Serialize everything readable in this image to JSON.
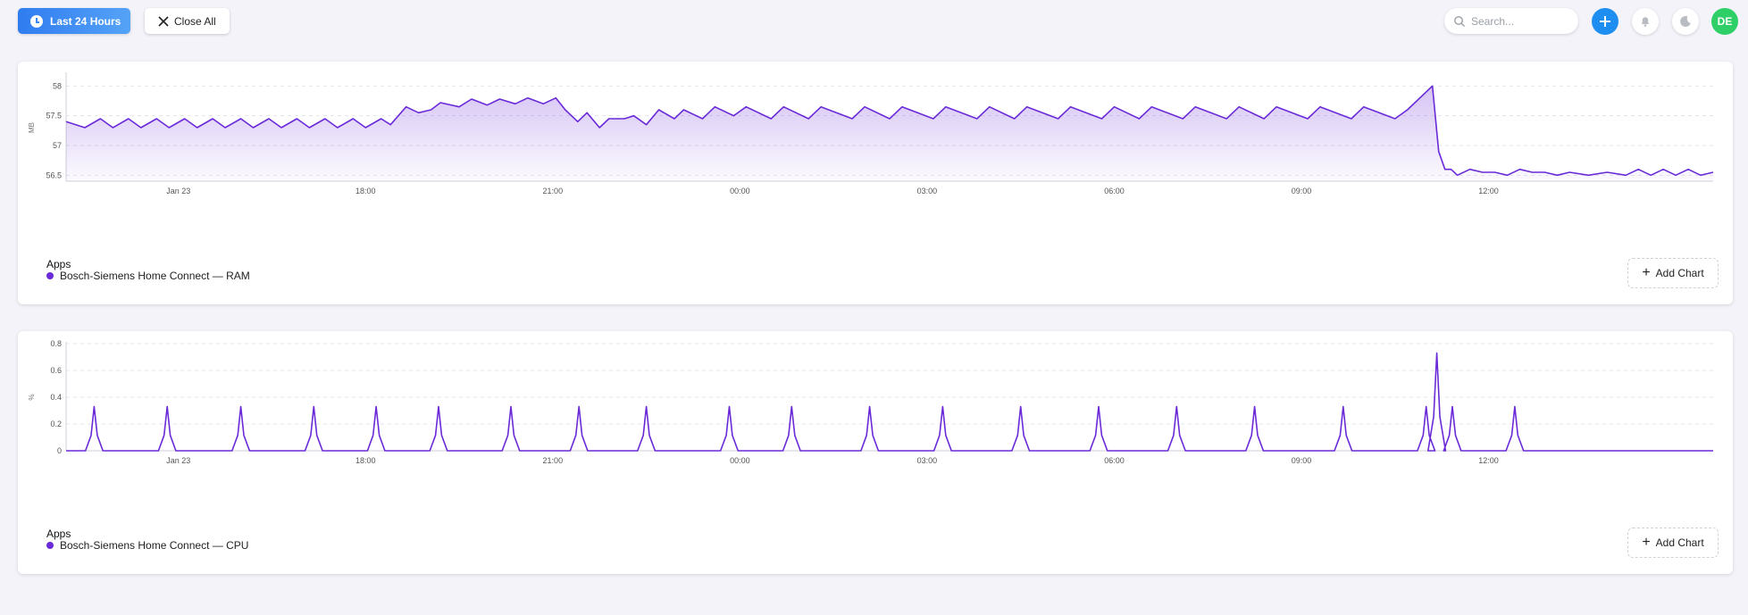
{
  "toolbar": {
    "time_range_label": "Last 24 Hours",
    "close_all_label": "Close All",
    "search_placeholder": "Search...",
    "avatar_initials": "DE"
  },
  "colors": {
    "accent": "#2f7cf0",
    "series": "#6a2ad8",
    "avatar": "#2fcf67",
    "add": "#1e8ff0"
  },
  "icons": [
    "clock-icon",
    "close-icon",
    "search-icon",
    "plus-icon",
    "bell-icon",
    "moon-icon"
  ],
  "charts": [
    {
      "legend_title": "Apps",
      "legend_item": "Bosch-Siemens Home Connect — RAM",
      "add_chart_label": "Add Chart"
    },
    {
      "legend_title": "Apps",
      "legend_item": "Bosch-Siemens Home Connect — CPU",
      "add_chart_label": "Add Chart"
    }
  ],
  "chart_data": [
    {
      "type": "area",
      "ylabel": "MB",
      "yticks": [
        56.5,
        57,
        57.5,
        58
      ],
      "ylim": [
        56.4,
        58.2
      ],
      "x_range_hours": [
        -1.8,
        24.6
      ],
      "xticks": [
        {
          "h": 0,
          "label": "Jan 23"
        },
        {
          "h": 3,
          "label": "18:00"
        },
        {
          "h": 6,
          "label": "21:00"
        },
        {
          "h": 9,
          "label": "00:00"
        },
        {
          "h": 12,
          "label": "03:00"
        },
        {
          "h": 15,
          "label": "06:00"
        },
        {
          "h": 18,
          "label": "09:00"
        },
        {
          "h": 21,
          "label": "12:00"
        }
      ],
      "grid": true,
      "series": [
        {
          "name": "Bosch-Siemens Home Connect — RAM",
          "x": [
            -1.8,
            -1.5,
            -1.25,
            -1.05,
            -0.8,
            -0.6,
            -0.35,
            -0.15,
            0.1,
            0.3,
            0.55,
            0.75,
            1.0,
            1.2,
            1.45,
            1.65,
            1.9,
            2.1,
            2.35,
            2.55,
            2.8,
            3.0,
            3.25,
            3.4,
            3.65,
            3.85,
            4.05,
            4.2,
            4.5,
            4.7,
            4.95,
            5.15,
            5.4,
            5.6,
            5.85,
            6.05,
            6.2,
            6.4,
            6.55,
            6.75,
            6.9,
            7.15,
            7.3,
            7.5,
            7.7,
            7.95,
            8.1,
            8.4,
            8.6,
            8.9,
            9.1,
            9.5,
            9.7,
            10.1,
            10.3,
            10.8,
            11.0,
            11.4,
            11.6,
            12.1,
            12.3,
            12.8,
            13.0,
            13.4,
            13.6,
            14.1,
            14.3,
            14.8,
            15.0,
            15.4,
            15.6,
            16.1,
            16.3,
            16.8,
            17.0,
            17.4,
            17.6,
            18.1,
            18.3,
            18.8,
            19.0,
            19.5,
            19.7,
            20.1,
            20.2,
            20.3,
            20.4,
            20.5,
            20.7,
            20.9,
            21.1,
            21.3,
            21.5,
            21.7,
            21.9,
            22.1,
            22.3,
            22.6,
            22.9,
            23.2,
            23.4,
            23.6,
            23.8,
            24.0,
            24.2,
            24.4,
            24.6
          ],
          "y": [
            57.4,
            57.3,
            57.45,
            57.3,
            57.45,
            57.3,
            57.45,
            57.3,
            57.45,
            57.3,
            57.45,
            57.3,
            57.45,
            57.3,
            57.45,
            57.3,
            57.45,
            57.3,
            57.45,
            57.3,
            57.45,
            57.3,
            57.45,
            57.35,
            57.65,
            57.55,
            57.6,
            57.72,
            57.65,
            57.78,
            57.68,
            57.78,
            57.7,
            57.8,
            57.7,
            57.8,
            57.6,
            57.4,
            57.55,
            57.3,
            57.45,
            57.45,
            57.5,
            57.35,
            57.6,
            57.45,
            57.6,
            57.45,
            57.65,
            57.5,
            57.65,
            57.45,
            57.65,
            57.45,
            57.65,
            57.45,
            57.65,
            57.45,
            57.65,
            57.45,
            57.65,
            57.45,
            57.65,
            57.45,
            57.65,
            57.45,
            57.65,
            57.45,
            57.65,
            57.45,
            57.65,
            57.45,
            57.65,
            57.45,
            57.65,
            57.45,
            57.65,
            57.45,
            57.65,
            57.45,
            57.65,
            57.45,
            57.6,
            58.0,
            56.9,
            56.6,
            56.6,
            56.5,
            56.6,
            56.55,
            56.55,
            56.5,
            56.6,
            56.55,
            56.55,
            56.5,
            56.55,
            56.5,
            56.55,
            56.5,
            56.6,
            56.5,
            56.6,
            56.5,
            56.6,
            56.5,
            56.55
          ]
        }
      ]
    },
    {
      "type": "line",
      "ylabel": "%",
      "yticks": [
        0,
        0.2,
        0.4,
        0.6,
        0.8
      ],
      "ylim": [
        0,
        0.8
      ],
      "x_range_hours": [
        -1.8,
        24.6
      ],
      "xticks": [
        {
          "h": 0,
          "label": "Jan 23"
        },
        {
          "h": 3,
          "label": "18:00"
        },
        {
          "h": 6,
          "label": "21:00"
        },
        {
          "h": 9,
          "label": "00:00"
        },
        {
          "h": 12,
          "label": "03:00"
        },
        {
          "h": 15,
          "label": "06:00"
        },
        {
          "h": 18,
          "label": "09:00"
        },
        {
          "h": 21,
          "label": "12:00"
        }
      ],
      "grid": true,
      "series": [
        {
          "name": "Bosch-Siemens Home Connect — CPU",
          "spikes": [
            {
              "h": -1.35,
              "v": 0.33
            },
            {
              "h": -0.18,
              "v": 0.33
            },
            {
              "h": 1.0,
              "v": 0.33
            },
            {
              "h": 2.17,
              "v": 0.33
            },
            {
              "h": 3.17,
              "v": 0.33
            },
            {
              "h": 4.17,
              "v": 0.33
            },
            {
              "h": 5.33,
              "v": 0.33
            },
            {
              "h": 6.42,
              "v": 0.33
            },
            {
              "h": 7.5,
              "v": 0.33
            },
            {
              "h": 8.83,
              "v": 0.33
            },
            {
              "h": 9.83,
              "v": 0.33
            },
            {
              "h": 11.08,
              "v": 0.33
            },
            {
              "h": 12.25,
              "v": 0.33
            },
            {
              "h": 13.5,
              "v": 0.33
            },
            {
              "h": 14.75,
              "v": 0.33
            },
            {
              "h": 16.0,
              "v": 0.33
            },
            {
              "h": 17.25,
              "v": 0.33
            },
            {
              "h": 18.67,
              "v": 0.33
            },
            {
              "h": 20.0,
              "v": 0.33
            },
            {
              "h": 20.17,
              "v": 0.73
            },
            {
              "h": 20.42,
              "v": 0.33
            },
            {
              "h": 21.42,
              "v": 0.33
            }
          ]
        }
      ]
    }
  ]
}
